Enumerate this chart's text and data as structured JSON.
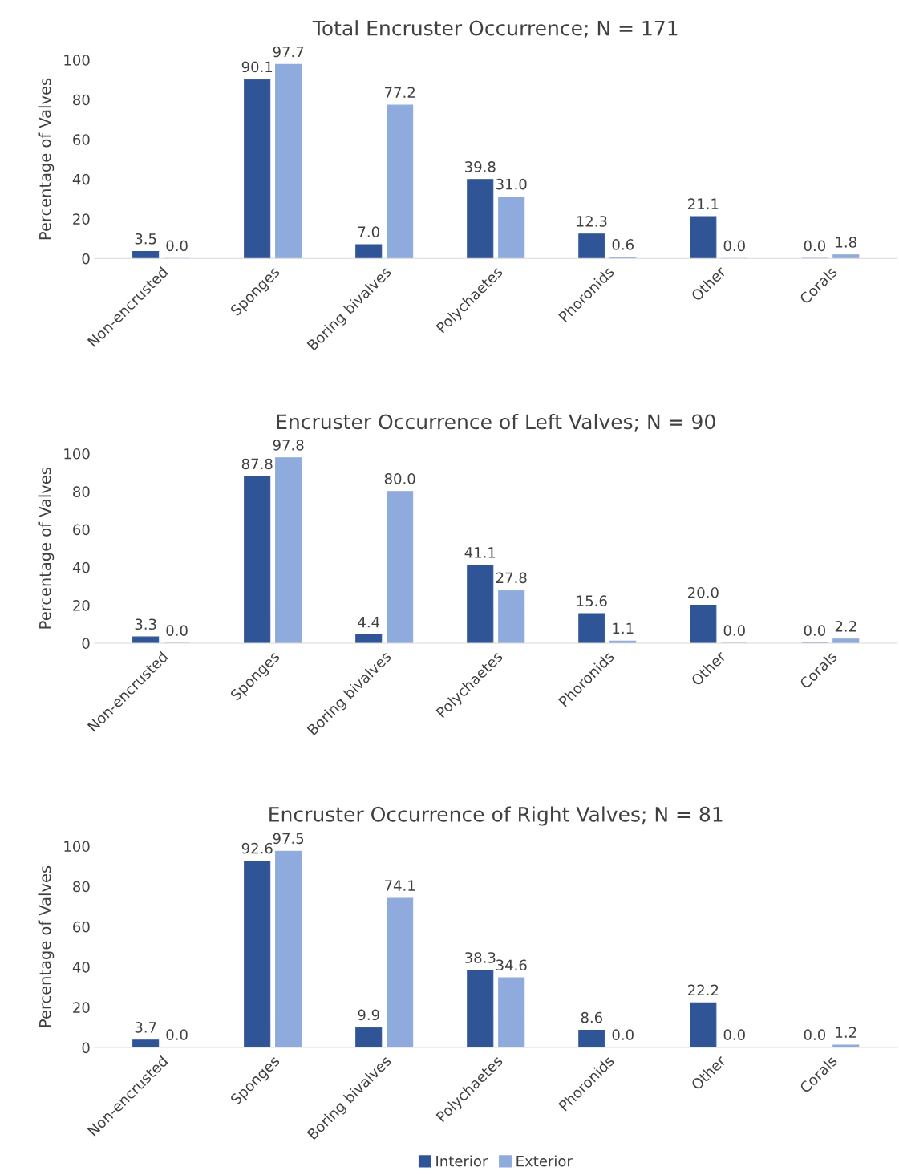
{
  "chart_data": [
    {
      "type": "bar",
      "title": "Total Encruster Occurrence; N = 171",
      "ylabel": "Percentage of Valves",
      "categories": [
        "Non-encrusted",
        "Sponges",
        "Boring bivalves",
        "Polychaetes",
        "Phoronids",
        "Other",
        "Corals"
      ],
      "series": [
        {
          "color": "#2f5597",
          "values": [
            3.5,
            90.1,
            7.0,
            39.8,
            12.3,
            21.1,
            0.0
          ],
          "value_labels": [
            "3.5",
            "90.1",
            "7.0",
            "39.8",
            "12.3",
            "21.1",
            "0.0"
          ]
        },
        {
          "color": "#8faadc",
          "values": [
            0.0,
            97.7,
            77.2,
            31.0,
            0.6,
            0.0,
            1.8
          ],
          "value_labels": [
            "0.0",
            "97.7",
            "77.2",
            "31.0",
            "0.6",
            "0.0",
            "1.8"
          ]
        }
      ],
      "ylim": [
        0,
        100
      ],
      "yticks": [
        0,
        20,
        40,
        60,
        80,
        100
      ],
      "grid": false
    },
    {
      "type": "bar",
      "title": "Encruster Occurrence of Left Valves; N = 90",
      "ylabel": "Percentage of Valves",
      "categories": [
        "Non-encrusted",
        "Sponges",
        "Boring bivalves",
        "Polychaetes",
        "Phoronids",
        "Other",
        "Corals"
      ],
      "series": [
        {
          "color": "#2f5597",
          "values": [
            3.3,
            87.8,
            4.4,
            41.1,
            15.6,
            20.0,
            0.0
          ],
          "value_labels": [
            "3.3",
            "87.8",
            "4.4",
            "41.1",
            "15.6",
            "20.0",
            "0.0"
          ]
        },
        {
          "color": "#8faadc",
          "values": [
            0.0,
            97.8,
            80.0,
            27.8,
            1.1,
            0.0,
            2.2
          ],
          "value_labels": [
            "0.0",
            "97.8",
            "80.0",
            "27.8",
            "1.1",
            "0.0",
            "2.2"
          ]
        }
      ],
      "ylim": [
        0,
        100
      ],
      "yticks": [
        0,
        20,
        40,
        60,
        80,
        100
      ],
      "grid": false
    },
    {
      "type": "bar",
      "title": "Encruster Occurrence of Right Valves; N = 81",
      "ylabel": "Percentage of Valves",
      "categories": [
        "Non-encrusted",
        "Sponges",
        "Boring bivalves",
        "Polychaetes",
        "Phoronids",
        "Other",
        "Corals"
      ],
      "series": [
        {
          "name": "Interior",
          "color": "#2f5597",
          "values": [
            3.7,
            92.6,
            9.9,
            38.3,
            8.6,
            22.2,
            0.0
          ],
          "value_labels": [
            "3.7",
            "92.6",
            "9.9",
            "38.3",
            "8.6",
            "22.2",
            "0.0"
          ]
        },
        {
          "name": "Exterior",
          "color": "#8faadc",
          "values": [
            0.0,
            97.5,
            74.1,
            34.6,
            0.0,
            0.0,
            1.2
          ],
          "value_labels": [
            "0.0",
            "97.5",
            "74.1",
            "34.6",
            "0.0",
            "0.0",
            "1.2"
          ]
        }
      ],
      "ylim": [
        0,
        100
      ],
      "yticks": [
        0,
        20,
        40,
        60,
        80,
        100
      ],
      "grid": false,
      "legend": "bottom"
    }
  ]
}
